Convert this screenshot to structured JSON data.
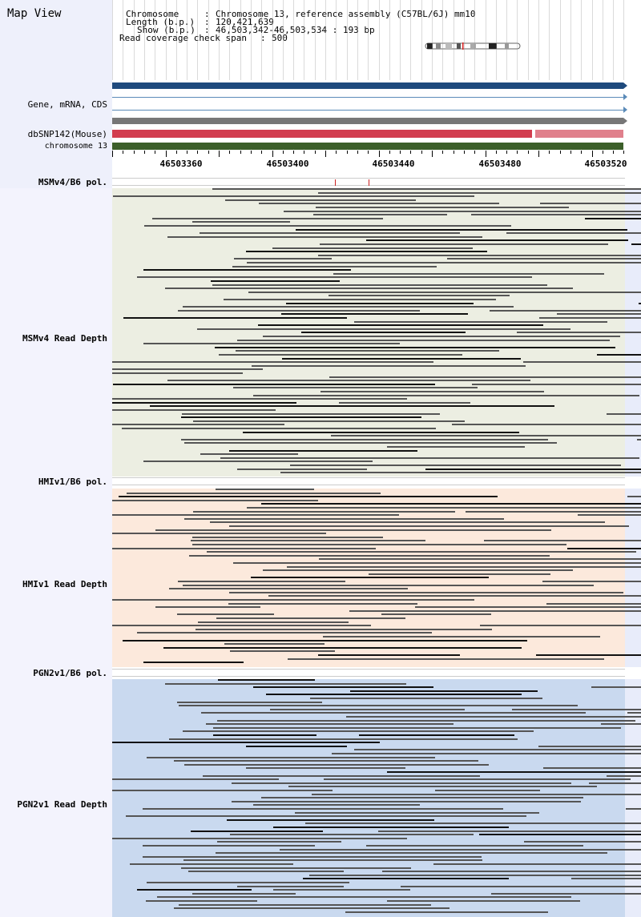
{
  "app": {
    "title": "Map View"
  },
  "info": {
    "chromosome_label": "Chromosome",
    "chromosome_value": "Chromosome 13, reference assembly (C57BL/6J) mm10",
    "length_label": "Length (b.p.)",
    "length_value": "120,421,639",
    "show_label": "Show (b.p.)",
    "show_value": "46,503,342-46,503,534 : 193 bp",
    "coverage_label": "Read coverage check span",
    "coverage_value": "500"
  },
  "tracks": {
    "gene": "Gene, mRNA, CDS",
    "dbsnp": "dbSNP142(Mouse)",
    "chromosome": "chromosome 13"
  },
  "ruler": {
    "ticks": [
      "46503360",
      "46503400",
      "46503440",
      "46503480",
      "46503520"
    ]
  },
  "samples": [
    {
      "pol_label": "MSMv4/B6 pol.",
      "depth_label": "MSMv4 Read Depth",
      "color": "#eceee2"
    },
    {
      "pol_label": "HMIv1/B6 pol.",
      "depth_label": "HMIv1 Read Depth",
      "color": "#fce9dc"
    },
    {
      "pol_label": "PGN2v1/B6 pol.",
      "depth_label": "PGN2v1 Read Depth",
      "color": "#c9d9ef"
    }
  ],
  "colors": {
    "gene_bar": "#1f4a7d",
    "dbsnp_bar": "#d23d4f",
    "dbsnp_bar_light": "#e0808c",
    "chromosome_bar": "#3c5f2a",
    "read_dark": "#555555",
    "read_black": "#111111"
  }
}
